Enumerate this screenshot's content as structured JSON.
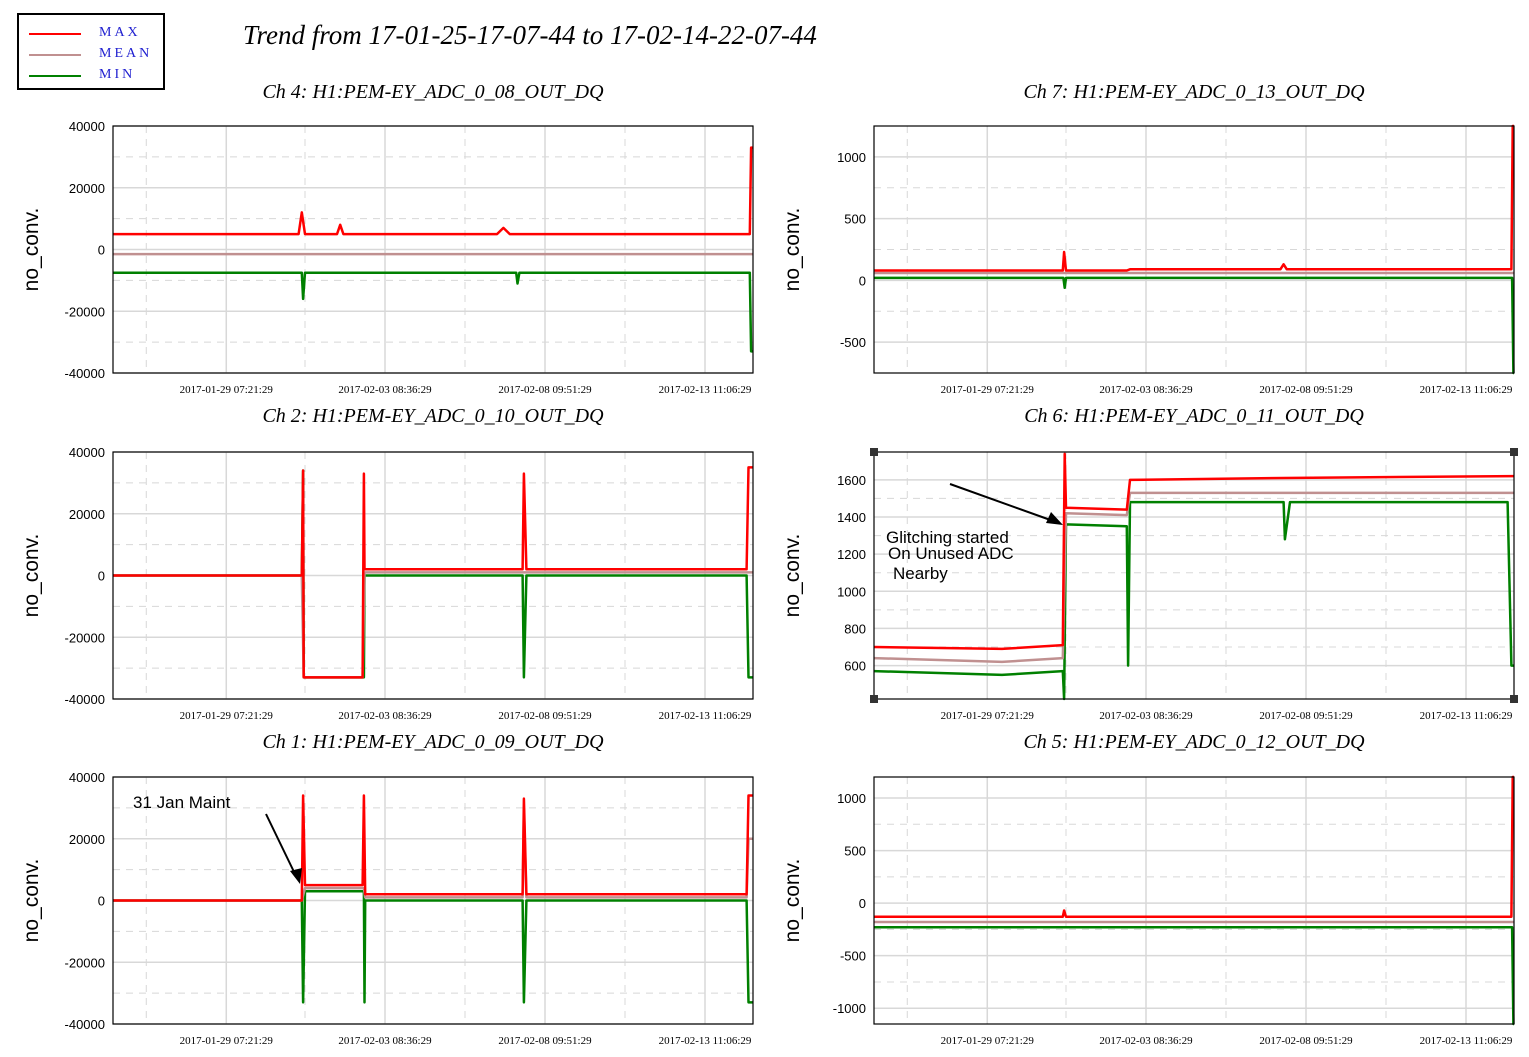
{
  "title": "Trend from 17-01-25-17-07-44 to 17-02-14-22-07-44",
  "legend": [
    {
      "label": "MAX",
      "color": "#ff0000"
    },
    {
      "label": "MEAN",
      "color": "#c09090"
    },
    {
      "label": "MIN",
      "color": "#008000"
    }
  ],
  "colors": {
    "max": "#ff0000",
    "mean": "#c09090",
    "min": "#008000",
    "grid": "#d8d8d8"
  },
  "chart_data": [
    {
      "type": "line",
      "title": "Ch 4: H1:PEM-EY_ADC_0_08_OUT_DQ",
      "ylabel": "no_conv.",
      "ylim": [
        -40000,
        40000
      ],
      "yticks": [
        -40000,
        -20000,
        0,
        20000,
        40000
      ],
      "xticks": [
        "2017-01-29 07:21:29",
        "2017-02-03 08:36:29",
        "2017-02-08 09:51:29",
        "2017-02-13 11:06:29"
      ],
      "grid": true,
      "annotations": [],
      "series": [
        {
          "name": "MAX",
          "color": "#ff0000",
          "points": [
            [
              0.0,
              5000
            ],
            [
              0.29,
              5000
            ],
            [
              0.295,
              12000
            ],
            [
              0.3,
              5000
            ],
            [
              0.35,
              5000
            ],
            [
              0.355,
              8000
            ],
            [
              0.36,
              5000
            ],
            [
              0.6,
              5000
            ],
            [
              0.61,
              7000
            ],
            [
              0.62,
              5000
            ],
            [
              0.995,
              5000
            ],
            [
              0.997,
              33000
            ],
            [
              1.0,
              33000
            ]
          ]
        },
        {
          "name": "MEAN",
          "color": "#c09090",
          "points": [
            [
              0.0,
              -1500
            ],
            [
              1.0,
              -1500
            ]
          ]
        },
        {
          "name": "MIN",
          "color": "#008000",
          "points": [
            [
              0.0,
              -7500
            ],
            [
              0.295,
              -7500
            ],
            [
              0.297,
              -16000
            ],
            [
              0.3,
              -7500
            ],
            [
              0.63,
              -7500
            ],
            [
              0.632,
              -11000
            ],
            [
              0.635,
              -7500
            ],
            [
              0.995,
              -7500
            ],
            [
              0.997,
              -33000
            ],
            [
              1.0,
              -33000
            ]
          ]
        }
      ]
    },
    {
      "type": "line",
      "title": "Ch 7: H1:PEM-EY_ADC_0_13_OUT_DQ",
      "ylabel": "no_conv.",
      "ylim": [
        -750,
        1250
      ],
      "yticks": [
        -500,
        0,
        500,
        1000
      ],
      "xticks": [
        "2017-01-29 07:21:29",
        "2017-02-03 08:36:29",
        "2017-02-08 09:51:29",
        "2017-02-13 11:06:29"
      ],
      "grid": true,
      "annotations": [],
      "series": [
        {
          "name": "MAX",
          "color": "#ff0000",
          "points": [
            [
              0.0,
              80
            ],
            [
              0.295,
              80
            ],
            [
              0.297,
              230
            ],
            [
              0.3,
              80
            ],
            [
              0.395,
              80
            ],
            [
              0.4,
              90
            ],
            [
              0.635,
              90
            ],
            [
              0.64,
              130
            ],
            [
              0.645,
              90
            ],
            [
              0.996,
              90
            ],
            [
              0.998,
              1250
            ],
            [
              1.0,
              1250
            ]
          ]
        },
        {
          "name": "MEAN",
          "color": "#c09090",
          "points": [
            [
              0.0,
              60
            ],
            [
              1.0,
              60
            ]
          ]
        },
        {
          "name": "MIN",
          "color": "#008000",
          "points": [
            [
              0.0,
              20
            ],
            [
              0.296,
              20
            ],
            [
              0.298,
              -60
            ],
            [
              0.3,
              20
            ],
            [
              0.997,
              20
            ],
            [
              0.999,
              -750
            ],
            [
              1.0,
              -750
            ]
          ]
        }
      ]
    },
    {
      "type": "line",
      "title": "Ch 2: H1:PEM-EY_ADC_0_10_OUT_DQ",
      "ylabel": "no_conv.",
      "ylim": [
        -40000,
        40000
      ],
      "yticks": [
        -40000,
        -20000,
        0,
        20000,
        40000
      ],
      "xticks": [
        "2017-01-29 07:21:29",
        "2017-02-03 08:36:29",
        "2017-02-08 09:51:29",
        "2017-02-13 11:06:29"
      ],
      "grid": true,
      "annotations": [],
      "series": [
        {
          "name": "MAX",
          "color": "#ff0000",
          "points": [
            [
              0.0,
              0
            ],
            [
              0.295,
              0
            ],
            [
              0.297,
              34000
            ],
            [
              0.298,
              -33000
            ],
            [
              0.39,
              -33000
            ],
            [
              0.392,
              33000
            ],
            [
              0.393,
              2000
            ],
            [
              0.64,
              2000
            ],
            [
              0.642,
              33000
            ],
            [
              0.646,
              2000
            ],
            [
              0.99,
              2000
            ],
            [
              0.993,
              35000
            ],
            [
              1.0,
              35000
            ]
          ]
        },
        {
          "name": "MEAN",
          "color": "#c09090",
          "points": [
            [
              0.0,
              0
            ],
            [
              0.295,
              0
            ],
            [
              0.298,
              -33000
            ],
            [
              0.39,
              -33000
            ],
            [
              0.393,
              1000
            ],
            [
              0.99,
              1000
            ],
            [
              1.0,
              1000
            ]
          ]
        },
        {
          "name": "MIN",
          "color": "#008000",
          "points": [
            [
              0.0,
              0
            ],
            [
              0.295,
              0
            ],
            [
              0.297,
              34000
            ],
            [
              0.298,
              -33000
            ],
            [
              0.392,
              -33000
            ],
            [
              0.393,
              0
            ],
            [
              0.64,
              0
            ],
            [
              0.642,
              -33000
            ],
            [
              0.646,
              0
            ],
            [
              0.99,
              0
            ],
            [
              0.993,
              -33000
            ],
            [
              1.0,
              -33000
            ]
          ]
        }
      ]
    },
    {
      "type": "line",
      "title": "Ch 6: H1:PEM-EY_ADC_0_11_OUT_DQ",
      "ylabel": "no_conv.",
      "ylim": [
        420,
        1750
      ],
      "yticks": [
        600,
        800,
        1000,
        1200,
        1400,
        1600
      ],
      "xticks": [
        "2017-01-29 07:21:29",
        "2017-02-03 08:36:29",
        "2017-02-08 09:51:29",
        "2017-02-13 11:06:29"
      ],
      "grid": true,
      "annotations": [
        "Glitching started",
        "On Unused ADC",
        "Nearby"
      ],
      "series": [
        {
          "name": "MAX",
          "color": "#ff0000",
          "points": [
            [
              0.0,
              700
            ],
            [
              0.2,
              690
            ],
            [
              0.295,
              710
            ],
            [
              0.298,
              1740
            ],
            [
              0.3,
              1450
            ],
            [
              0.395,
              1440
            ],
            [
              0.4,
              1600
            ],
            [
              0.64,
              1610
            ],
            [
              0.998,
              1620
            ],
            [
              1.0,
              1620
            ]
          ]
        },
        {
          "name": "MEAN",
          "color": "#c09090",
          "points": [
            [
              0.0,
              640
            ],
            [
              0.2,
              620
            ],
            [
              0.295,
              640
            ],
            [
              0.3,
              1420
            ],
            [
              0.395,
              1410
            ],
            [
              0.4,
              1530
            ],
            [
              1.0,
              1530
            ]
          ]
        },
        {
          "name": "MIN",
          "color": "#008000",
          "points": [
            [
              0.0,
              570
            ],
            [
              0.2,
              550
            ],
            [
              0.295,
              570
            ],
            [
              0.297,
              420
            ],
            [
              0.3,
              1360
            ],
            [
              0.395,
              1350
            ],
            [
              0.397,
              600
            ],
            [
              0.4,
              1480
            ],
            [
              0.64,
              1480
            ],
            [
              0.642,
              1280
            ],
            [
              0.65,
              1480
            ],
            [
              0.99,
              1480
            ],
            [
              0.996,
              600
            ],
            [
              1.0,
              600
            ]
          ]
        }
      ]
    },
    {
      "type": "line",
      "title": "Ch 1: H1:PEM-EY_ADC_0_09_OUT_DQ",
      "ylabel": "no_conv.",
      "ylim": [
        -40000,
        40000
      ],
      "yticks": [
        -40000,
        -20000,
        0,
        20000,
        40000
      ],
      "xticks": [
        "2017-01-29 07:21:29",
        "2017-02-03 08:36:29",
        "2017-02-08 09:51:29",
        "2017-02-13 11:06:29"
      ],
      "grid": true,
      "annotations": [
        "31 Jan Maint"
      ],
      "series": [
        {
          "name": "MAX",
          "color": "#ff0000",
          "points": [
            [
              0.0,
              0
            ],
            [
              0.295,
              0
            ],
            [
              0.297,
              34000
            ],
            [
              0.3,
              5000
            ],
            [
              0.39,
              5000
            ],
            [
              0.392,
              34000
            ],
            [
              0.394,
              2000
            ],
            [
              0.64,
              2000
            ],
            [
              0.642,
              33000
            ],
            [
              0.646,
              2000
            ],
            [
              0.99,
              2000
            ],
            [
              0.993,
              34000
            ],
            [
              1.0,
              34000
            ]
          ]
        },
        {
          "name": "MEAN",
          "color": "#c09090",
          "points": [
            [
              0.0,
              0
            ],
            [
              0.295,
              0
            ],
            [
              0.3,
              4000
            ],
            [
              0.392,
              4000
            ],
            [
              0.394,
              1000
            ],
            [
              0.64,
              1000
            ],
            [
              0.642,
              30000
            ],
            [
              0.646,
              1000
            ],
            [
              0.99,
              1000
            ],
            [
              0.993,
              20000
            ],
            [
              1.0,
              20000
            ]
          ]
        },
        {
          "name": "MIN",
          "color": "#008000",
          "points": [
            [
              0.0,
              0
            ],
            [
              0.295,
              0
            ],
            [
              0.297,
              -33000
            ],
            [
              0.3,
              3000
            ],
            [
              0.392,
              3000
            ],
            [
              0.393,
              -33000
            ],
            [
              0.394,
              0
            ],
            [
              0.64,
              0
            ],
            [
              0.642,
              -33000
            ],
            [
              0.646,
              0
            ],
            [
              0.99,
              0
            ],
            [
              0.993,
              -33000
            ],
            [
              1.0,
              -33000
            ]
          ]
        }
      ]
    },
    {
      "type": "line",
      "title": "Ch 5: H1:PEM-EY_ADC_0_12_OUT_DQ",
      "ylabel": "no_conv.",
      "ylim": [
        -1150,
        1200
      ],
      "yticks": [
        -1000,
        -500,
        0,
        500,
        1000
      ],
      "xticks": [
        "2017-01-29 07:21:29",
        "2017-02-03 08:36:29",
        "2017-02-08 09:51:29",
        "2017-02-13 11:06:29"
      ],
      "grid": true,
      "annotations": [],
      "series": [
        {
          "name": "MAX",
          "color": "#ff0000",
          "points": [
            [
              0.0,
              -130
            ],
            [
              0.295,
              -130
            ],
            [
              0.297,
              -70
            ],
            [
              0.3,
              -130
            ],
            [
              0.996,
              -130
            ],
            [
              0.998,
              1200
            ],
            [
              1.0,
              1200
            ]
          ]
        },
        {
          "name": "MEAN",
          "color": "#c09090",
          "points": [
            [
              0.0,
              -180
            ],
            [
              1.0,
              -180
            ]
          ]
        },
        {
          "name": "MIN",
          "color": "#008000",
          "points": [
            [
              0.0,
              -230
            ],
            [
              0.997,
              -230
            ],
            [
              0.999,
              -1150
            ],
            [
              1.0,
              -1150
            ]
          ]
        }
      ]
    }
  ]
}
